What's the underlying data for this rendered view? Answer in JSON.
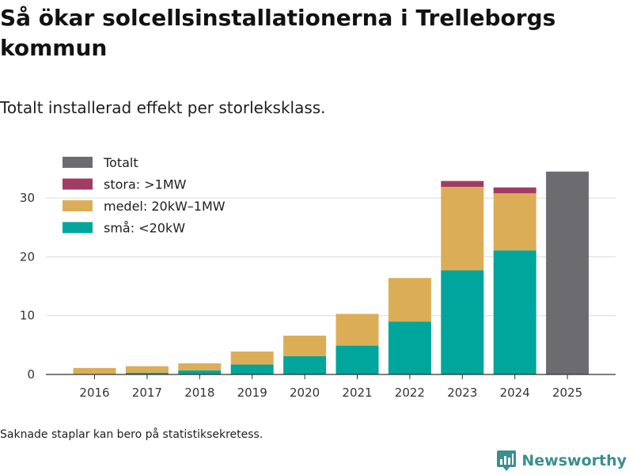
{
  "title": "Så ökar solcellsinstallationerna i Trelleborgs kommun",
  "subtitle": "Totalt installerad effekt per storleksklass.",
  "footnote": "Saknade staplar kan bero på statistiksekretess.",
  "brand": {
    "name": "Newsworthy"
  },
  "colors": {
    "sma": "#00a59b",
    "medel": "#dcad57",
    "stora": "#a23b63",
    "totalt": "#6c6b70"
  },
  "chart_data": {
    "type": "bar",
    "stacked": true,
    "categories": [
      "2016",
      "2017",
      "2018",
      "2019",
      "2020",
      "2021",
      "2022",
      "2023",
      "2024",
      "2025"
    ],
    "series": [
      {
        "key": "sma",
        "name": "små: <20kW",
        "values": [
          0.1,
          0.3,
          0.7,
          1.7,
          3.1,
          4.9,
          9.0,
          17.7,
          21.1,
          0
        ]
      },
      {
        "key": "medel",
        "name": "medel: 20kW–1MW",
        "values": [
          1.0,
          1.1,
          1.2,
          2.2,
          3.5,
          5.4,
          7.4,
          14.2,
          9.7,
          0
        ]
      },
      {
        "key": "stora",
        "name": "stora: >1MW",
        "values": [
          0,
          0,
          0,
          0,
          0,
          0,
          0,
          1.0,
          1.0,
          0
        ]
      },
      {
        "key": "totalt",
        "name": "Totalt",
        "values": [
          0,
          0,
          0,
          0,
          0,
          0,
          0,
          0,
          0,
          34.5
        ]
      }
    ],
    "legend_order": [
      "Totalt",
      "stora: >1MW",
      "medel: 20kW–1MW",
      "små: <20kW"
    ],
    "yticks": [
      "0",
      "10",
      "20",
      "30"
    ],
    "ylim": [
      0,
      35
    ],
    "title": "Så ökar solcellsinstallationerna i Trelleborgs kommun",
    "xlabel": "",
    "ylabel": "",
    "legend_position": "top-left"
  }
}
